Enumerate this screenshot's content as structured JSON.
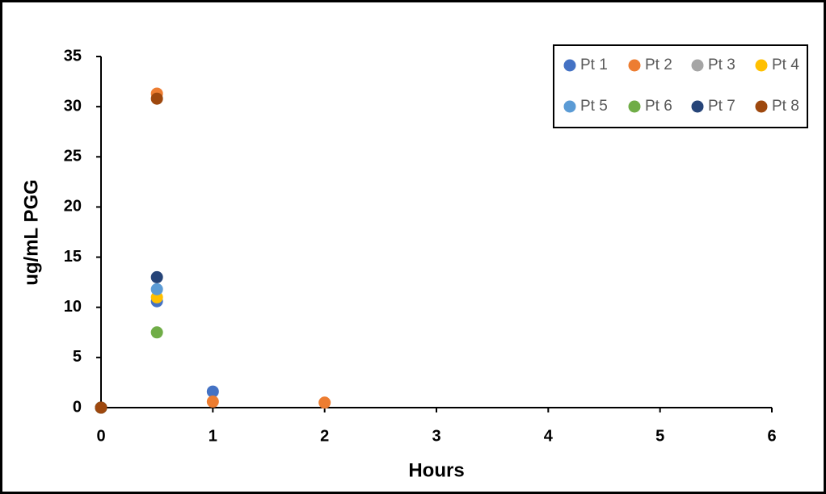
{
  "chart_data": {
    "type": "scatter",
    "x_label": "Hours",
    "y_label": "ug/mL PGG",
    "xlim": [
      0,
      6
    ],
    "xticks": [
      0,
      1,
      2,
      3,
      4,
      5,
      6
    ],
    "ylim": [
      0,
      35
    ],
    "yticks": [
      0,
      5,
      10,
      15,
      20,
      25,
      30,
      35
    ],
    "grid": false,
    "legend": "top-right",
    "series": [
      {
        "name": "Pt 1",
        "color": "#4472c4",
        "x": [
          0,
          0.5,
          1
        ],
        "values": [
          0,
          10.6,
          1.6
        ]
      },
      {
        "name": "Pt 2",
        "color": "#ed7d31",
        "x": [
          0,
          0.5,
          1,
          2
        ],
        "values": [
          0,
          31.3,
          0.6,
          0.5
        ]
      },
      {
        "name": "Pt 3",
        "color": "#a5a5a5",
        "x": [
          0
        ],
        "values": [
          0
        ]
      },
      {
        "name": "Pt 4",
        "color": "#ffc000",
        "x": [
          0,
          0.5
        ],
        "values": [
          0,
          11.0
        ]
      },
      {
        "name": "Pt 5",
        "color": "#5b9bd5",
        "x": [
          0,
          0.5
        ],
        "values": [
          0,
          11.8
        ]
      },
      {
        "name": "Pt 6",
        "color": "#70ad47",
        "x": [
          0,
          0.5
        ],
        "values": [
          0,
          7.5
        ]
      },
      {
        "name": "Pt 7",
        "color": "#264478",
        "x": [
          0,
          0.5
        ],
        "values": [
          0,
          13.0
        ]
      },
      {
        "name": "Pt 8",
        "color": "#9e480e",
        "x": [
          0,
          0.5
        ],
        "values": [
          0,
          30.8
        ]
      }
    ]
  }
}
